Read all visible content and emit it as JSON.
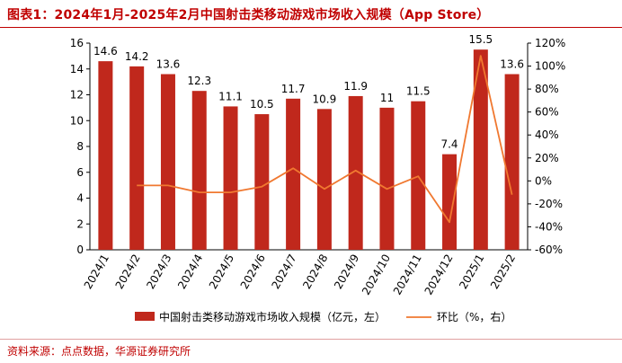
{
  "figure_title": "图表1：2024年1月-2025年2月中国射击类移动游戏市场收入规模（App Store）",
  "source_note": "资料来源：点点数据，华源证券研究所",
  "colors": {
    "bar": "#c0281c",
    "line": "#f07830",
    "title": "#c00000",
    "axis": "#000000"
  },
  "chart_data": {
    "type": "bar+line",
    "categories": [
      "2024/1",
      "2024/2",
      "2024/3",
      "2024/4",
      "2024/5",
      "2024/6",
      "2024/7",
      "2024/8",
      "2024/9",
      "2024/10",
      "2024/11",
      "2024/12",
      "2025/1",
      "2025/2"
    ],
    "series": [
      {
        "name": "中国射击类移动游戏市场收入规模（亿元，左）",
        "type": "bar",
        "axis": "left",
        "values": [
          14.6,
          14.2,
          13.6,
          12.3,
          11.1,
          10.5,
          11.7,
          10.9,
          11.9,
          11,
          11.5,
          7.4,
          15.5,
          13.6
        ],
        "data_labels": [
          "14.6",
          "14.2",
          "13.6",
          "12.3",
          "11.1",
          "10.5",
          "11.7",
          "10.9",
          "11.9",
          "11",
          "11.5",
          "7.4",
          "15.5",
          "13.6"
        ]
      },
      {
        "name": "环比（%，右）",
        "type": "line",
        "axis": "right",
        "values": [
          null,
          -4,
          -4,
          -10,
          -10,
          -5,
          11,
          -7,
          9,
          -7,
          4,
          -36,
          109,
          -12
        ]
      }
    ],
    "left_axis": {
      "min": 0,
      "max": 16,
      "ticks": [
        "0",
        "2",
        "4",
        "6",
        "8",
        "10",
        "12",
        "14",
        "16"
      ]
    },
    "right_axis": {
      "min": -60,
      "max": 120,
      "ticks": [
        "-60%",
        "-40%",
        "-20%",
        "0%",
        "20%",
        "40%",
        "60%",
        "80%",
        "100%",
        "120%"
      ]
    },
    "legend": {
      "position": "bottom"
    },
    "grid": false
  }
}
